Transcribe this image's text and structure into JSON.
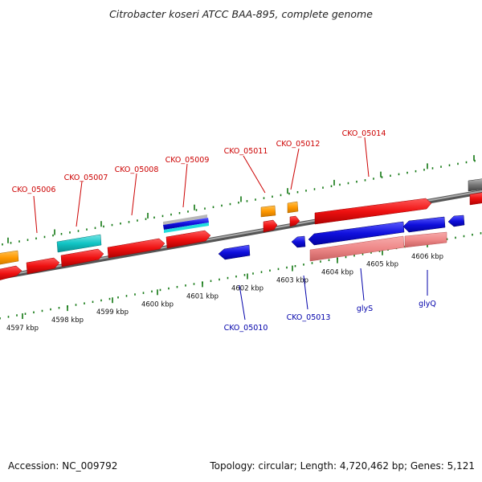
{
  "title": "Citrobacter koseri ATCC BAA-895, complete genome",
  "footer": {
    "accession": "Accession: NC_009792",
    "summary": "Topology: circular; Length: 4,720,462 bp; Genes: 5,121"
  },
  "colors": {
    "forward_cds": "#ee1111",
    "reverse_cds": "#1010dd",
    "pseudo_pink": "#ee8888",
    "rna_orange": "#ff9900",
    "cyan": "#11c4c4",
    "gray": "#777777",
    "label_forward": "#cc0000",
    "label_reverse": "#0000aa",
    "tick_green": "#117711"
  },
  "ruler": {
    "labels": [
      "4597 kbp",
      "4598 kbp",
      "4599 kbp",
      "4600 kbp",
      "4601 kbp",
      "4602 kbp",
      "4603 kbp",
      "4604 kbp",
      "4605 kbp",
      "4606 kbp"
    ]
  },
  "gene_labels": {
    "forward": [
      "CKO_05006",
      "CKO_05007",
      "CKO_05008",
      "CKO_05009",
      "CKO_05011",
      "CKO_05012",
      "CKO_05014"
    ],
    "reverse": [
      "CKO_05010",
      "CKO_05013",
      "glyS",
      "glyQ"
    ]
  }
}
